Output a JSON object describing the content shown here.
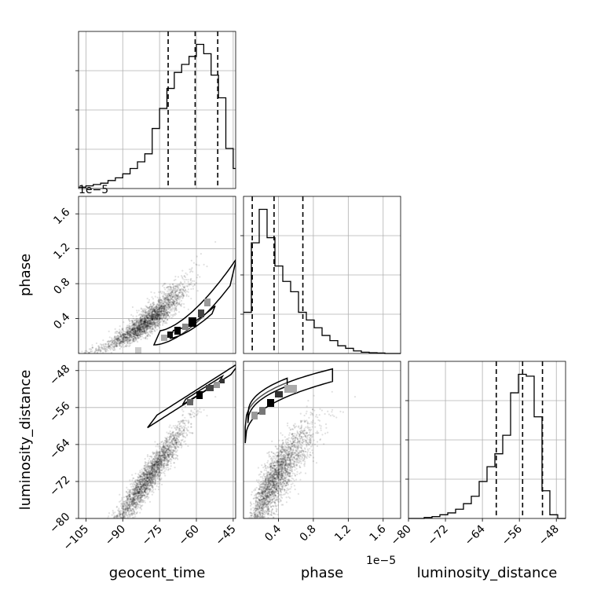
{
  "chart_data": {
    "type": "corner",
    "parameters": [
      {
        "name": "geocent_time",
        "label": "geocent_time",
        "range": [
          -108,
          -44
        ],
        "ticks": [
          -105,
          -90,
          -75,
          -60,
          -45
        ]
      },
      {
        "name": "phase",
        "label": "phase",
        "range": [
          0,
          1.8
        ],
        "ticks": [
          0.4,
          0.8,
          1.2,
          1.6
        ],
        "offset_label": "1e−5"
      },
      {
        "name": "luminosity_distance",
        "label": "luminosity_distance",
        "range": [
          -80,
          -46
        ],
        "ticks": [
          -80,
          -72,
          -64,
          -56,
          -48
        ]
      }
    ],
    "marginals": [
      {
        "parameter": "geocent_time",
        "bin_edges": [
          -108,
          -105,
          -102,
          -99,
          -96,
          -93,
          -90,
          -87,
          -84,
          -81,
          -78,
          -75,
          -72,
          -69,
          -66,
          -63,
          -60,
          -57,
          -54,
          -51,
          -48,
          -45,
          -42
        ],
        "counts": [
          1,
          2,
          3,
          4,
          6,
          8,
          11,
          15,
          20,
          26,
          45,
          60,
          75,
          87,
          93,
          99,
          108,
          101,
          85,
          68,
          30,
          15
        ],
        "quantiles": [
          -71.5,
          -60.5,
          -51.3
        ]
      },
      {
        "parameter": "phase",
        "bin_edges": [
          0.0,
          0.09,
          0.18,
          0.27,
          0.36,
          0.45,
          0.54,
          0.63,
          0.72,
          0.81,
          0.9,
          0.99,
          1.08,
          1.17,
          1.26,
          1.35,
          1.44,
          1.53,
          1.62,
          1.71,
          1.8
        ],
        "counts": [
          16,
          43,
          56,
          45,
          34,
          28,
          24,
          16,
          13,
          10,
          7,
          5,
          3,
          2,
          1,
          0.5,
          0.3,
          0.2,
          0,
          0
        ],
        "quantiles": [
          0.1,
          0.35,
          0.68
        ]
      },
      {
        "parameter": "luminosity_distance",
        "bin_edges": [
          -80,
          -78.3,
          -76.6,
          -74.9,
          -73.2,
          -71.5,
          -69.8,
          -68.1,
          -66.4,
          -64.7,
          -63,
          -61.3,
          -59.6,
          -57.9,
          -56.2,
          -54.5,
          -52.8,
          -51.1,
          -49.4,
          -47.7,
          -46
        ],
        "counts": [
          0,
          0,
          0.5,
          1,
          2,
          3,
          5,
          8,
          12,
          20,
          28,
          35,
          45,
          68,
          78,
          77,
          55,
          15,
          2,
          0
        ],
        "quantiles": [
          -61,
          -55.3,
          -51
        ]
      }
    ]
  }
}
